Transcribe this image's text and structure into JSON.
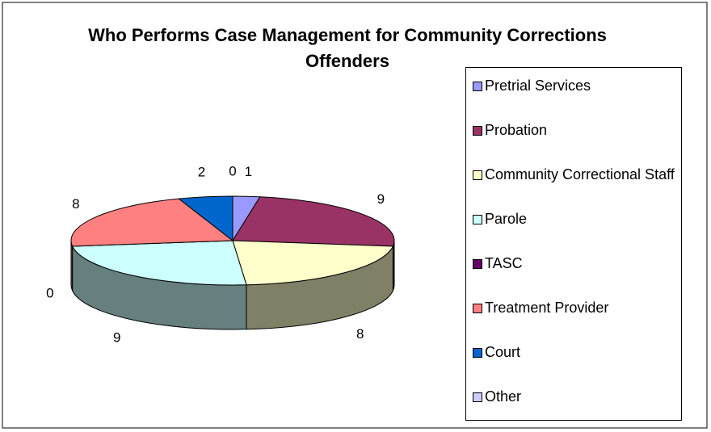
{
  "chart_data": {
    "type": "pie3d",
    "title": "Who Performs Case Management for Community Corrections Offenders",
    "categories": [
      "Pretrial Services",
      "Probation",
      "Community Correctional Staff",
      "Parole",
      "TASC",
      "Treatment Provider",
      "Court",
      "Other"
    ],
    "values": [
      1,
      9,
      8,
      9,
      0,
      8,
      2,
      0
    ],
    "colors": [
      "#9999ff",
      "#993366",
      "#ffffcc",
      "#ccffff",
      "#660066",
      "#ff8080",
      "#0066cc",
      "#ccccff"
    ],
    "legend": "right"
  }
}
